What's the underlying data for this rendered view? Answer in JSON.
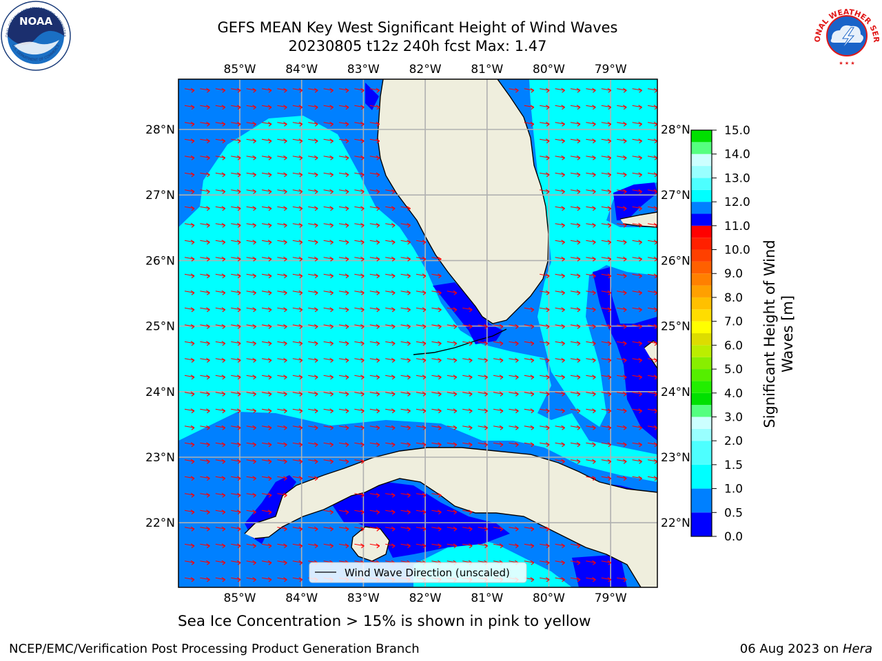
{
  "title_line1": "GEFS MEAN Key West Significant Height of Wind Waves",
  "title_line2": "20230805 t12z 240h fcst   Max: 1.47",
  "map": {
    "lon_ticks": [
      "85°W",
      "84°W",
      "83°W",
      "82°W",
      "81°W",
      "80°W",
      "79°W"
    ],
    "lat_ticks": [
      "28°N",
      "27°N",
      "26°N",
      "25°N",
      "24°N",
      "23°N",
      "22°N"
    ],
    "legend_label": "Wind Wave Direction (unscaled)",
    "colors": {
      "land": "#efeedd",
      "band_0_0_5": "#0000ff",
      "band_0_5_1_0": "#0080ff",
      "band_1_0_1_5": "#00ffff",
      "arrow": "#ff0000",
      "grid": "#b0b0b0"
    }
  },
  "colorbar": {
    "ticks": [
      "15.0",
      "14.0",
      "13.0",
      "12.0",
      "11.0",
      "10.0",
      "9.0",
      "8.0",
      "7.0",
      "6.0",
      "5.0",
      "4.0",
      "3.0",
      "2.0",
      "1.5",
      "1.0",
      "0.5",
      "0.0"
    ],
    "label_line1": "Significant Height of Wind",
    "label_line2": "Waves [m]",
    "colors": [
      "#0000ff",
      "#0080ff",
      "#00ffff",
      "#4dffff",
      "#99ffff",
      "#ccffff",
      "#55ff80",
      "#00e000",
      "#22ee00",
      "#55ee00",
      "#88ee00",
      "#bbee00",
      "#dddd00",
      "#ffff00",
      "#ffdd00",
      "#ffc000",
      "#ffa000",
      "#ff8000",
      "#ff6000",
      "#ff4000",
      "#ff2000",
      "#ff0000"
    ]
  },
  "sea_ice_note": "Sea Ice Concentration > 15% is shown in pink to yellow",
  "credit_left": "NCEP/EMC/Verification Post Processing Product Generation Branch",
  "credit_right_date": "06 Aug 2023 on ",
  "credit_right_host": "Hera",
  "logos": {
    "noaa_text": "NOAA",
    "noaa_ring": "NATIONAL OCEANIC AND ATMOSPHERIC ADMINISTRATION",
    "noaa_ring_bottom": "U.S. DEPARTMENT OF COMMERCE",
    "nws_ring": "NATIONAL WEATHER SERVICE"
  }
}
